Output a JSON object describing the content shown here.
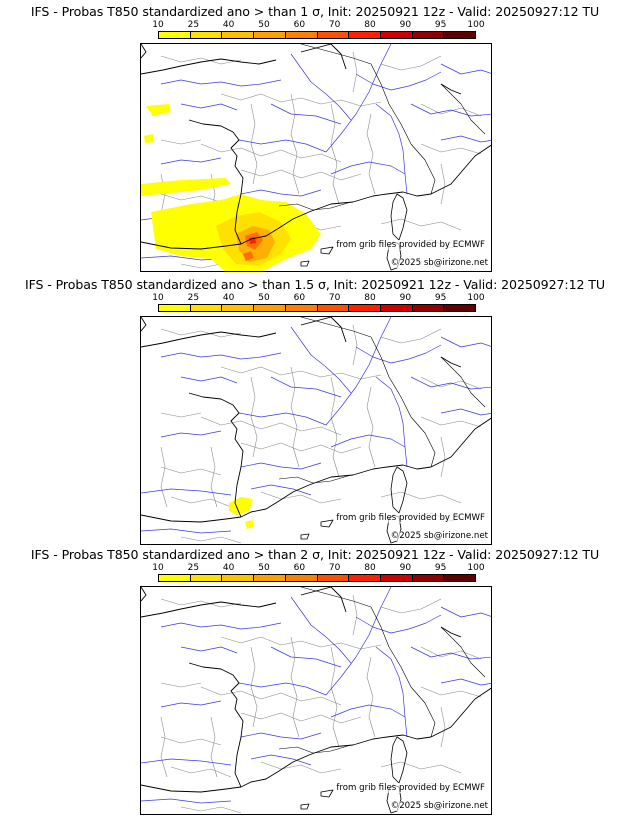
{
  "colorbar": {
    "labels": [
      "10",
      "25",
      "40",
      "50",
      "60",
      "70",
      "80",
      "90",
      "95",
      "100"
    ],
    "colors": [
      "#ffff00",
      "#ffe000",
      "#ffc000",
      "#ffa000",
      "#ff8000",
      "#ff5000",
      "#ff2000",
      "#d00000",
      "#900000",
      "#600000"
    ]
  },
  "panels": [
    {
      "title": "IFS - Probas T850  standardized ano > than 1 σ, Init: 20250921 12z - Valid: 20250927:12 TU",
      "credit_source": "from grib files provided by ECMWF",
      "credit_copyright": "©2025 sb@irizone.net"
    },
    {
      "title": "IFS - Probas T850  standardized ano > than 1.5 σ, Init: 20250921 12z - Valid: 20250927:12 TU",
      "credit_source": "from grib files provided by ECMWF",
      "credit_copyright": "©2025 sb@irizone.net"
    },
    {
      "title": "IFS - Probas T850  standardized ano > than 2 σ, Init: 20250921 12z - Valid: 20250927:12 TU",
      "credit_source": "from grib files provided by ECMWF",
      "credit_copyright": "©2025 sb@irizone.net"
    }
  ],
  "map_colors": {
    "coast": "#000000",
    "rivers": "#3a3ae0",
    "borders": "#8a8a8a"
  }
}
